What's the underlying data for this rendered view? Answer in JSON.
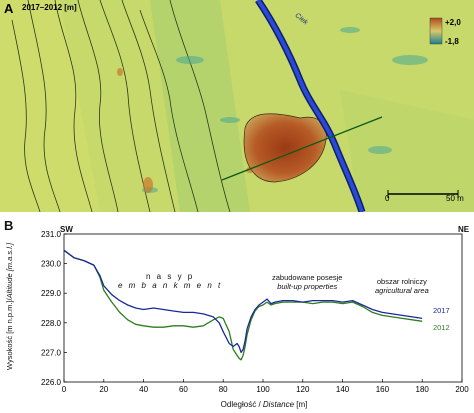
{
  "panel_a": {
    "letter": "A",
    "caption": "2017–2012 [m]",
    "legend": {
      "max_label": "+2,0",
      "min_label": "-1,8",
      "max_color": "#b04a1a",
      "min_color": "#1f7f8f"
    },
    "river_label": "Ciek",
    "scale_bar": {
      "start": "0",
      "end": "50 m"
    },
    "colors": {
      "background": "#c7dc6a",
      "low": "#3f9c8c",
      "high": "#b0481a",
      "river": "#1f35b5",
      "profile_line": "#0d5a12"
    }
  },
  "panel_b": {
    "letter": "B",
    "dir_left": "SW",
    "dir_right": "NE",
    "y_title": "Wysokość [m n.p.m.]/Altitude [m.a.s.l.]",
    "y_title_a": "Wysokość [m n.p.m.]/",
    "y_title_b": "Altitude [m.a.s.l.]",
    "x_title_a": "Odległość / ",
    "x_title_b": "Distance",
    "x_title_c": " [m]",
    "annotations": {
      "embankment_pl": "n a s y p",
      "embankment_en": "e m b a n k m e n t",
      "built_pl": "zabudowane posesje",
      "built_en": "built-up properties",
      "agri_pl": "obszar rolniczy",
      "agri_en": "agricultural area"
    }
  },
  "chart_data": {
    "type": "line",
    "xlabel": "Odległość / Distance [m]",
    "ylabel": "Wysokość [m n.p.m.]/Altitude [m.a.s.l.]",
    "xlim": [
      0,
      200
    ],
    "ylim": [
      226.0,
      231.0
    ],
    "xticks": [
      0,
      20,
      40,
      60,
      80,
      100,
      120,
      140,
      160,
      180,
      200
    ],
    "yticks": [
      "226.0",
      "227.0",
      "228.0",
      "229.0",
      "230.0",
      "231.0"
    ],
    "grid": false,
    "series": [
      {
        "name": "2017",
        "color": "#1a2a9a",
        "x": [
          0,
          5,
          10,
          15,
          18,
          20,
          24,
          28,
          32,
          36,
          40,
          45,
          50,
          55,
          60,
          65,
          70,
          75,
          78,
          80,
          83,
          85,
          87,
          88,
          89,
          90,
          91,
          92,
          94,
          96,
          98,
          100,
          102,
          104,
          106,
          110,
          115,
          120,
          125,
          130,
          135,
          140,
          145,
          150,
          155,
          160,
          165,
          170,
          175,
          180
        ],
        "y": [
          230.45,
          230.2,
          230.1,
          229.95,
          229.6,
          229.25,
          228.95,
          228.75,
          228.6,
          228.5,
          228.45,
          228.5,
          228.45,
          228.4,
          228.35,
          228.35,
          228.3,
          228.2,
          228.0,
          227.7,
          227.3,
          227.2,
          227.3,
          227.2,
          227.0,
          227.1,
          227.4,
          227.8,
          228.2,
          228.45,
          228.6,
          228.7,
          228.8,
          228.65,
          228.7,
          228.75,
          228.75,
          228.7,
          228.75,
          228.75,
          228.75,
          228.7,
          228.75,
          228.6,
          228.45,
          228.35,
          228.3,
          228.25,
          228.2,
          228.15
        ]
      },
      {
        "name": "2012",
        "color": "#2e7d1e",
        "x": [
          0,
          5,
          10,
          15,
          18,
          20,
          24,
          28,
          32,
          36,
          40,
          45,
          50,
          55,
          60,
          65,
          70,
          75,
          78,
          80,
          83,
          85,
          87,
          88,
          89,
          90,
          91,
          92,
          94,
          96,
          98,
          100,
          102,
          104,
          106,
          110,
          115,
          120,
          125,
          130,
          135,
          140,
          145,
          150,
          155,
          160,
          165,
          170,
          175,
          180
        ],
        "y": [
          230.45,
          230.2,
          230.1,
          229.95,
          229.55,
          229.1,
          228.7,
          228.35,
          228.1,
          227.95,
          227.9,
          227.85,
          227.85,
          227.9,
          227.9,
          227.85,
          227.9,
          228.1,
          228.2,
          228.15,
          227.7,
          227.1,
          226.9,
          226.8,
          226.75,
          226.9,
          227.2,
          227.6,
          228.1,
          228.4,
          228.55,
          228.6,
          228.7,
          228.6,
          228.65,
          228.7,
          228.7,
          228.7,
          228.65,
          228.7,
          228.7,
          228.65,
          228.7,
          228.55,
          228.35,
          228.25,
          228.2,
          228.15,
          228.1,
          228.05
        ]
      }
    ]
  }
}
